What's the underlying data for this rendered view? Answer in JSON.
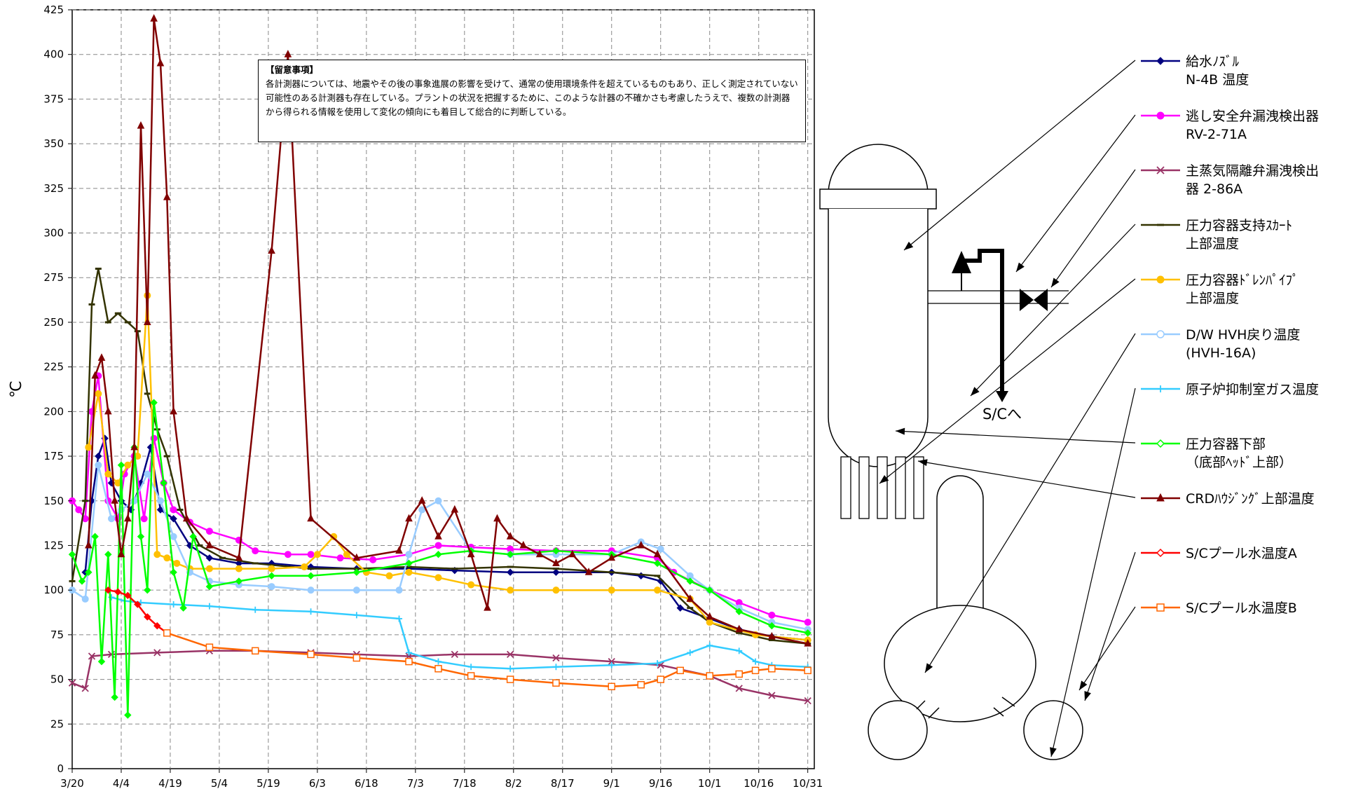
{
  "chart_data": {
    "type": "line",
    "ylabel": "℃",
    "ylim": [
      0,
      425
    ],
    "yticks": [
      0,
      25,
      50,
      75,
      100,
      125,
      150,
      175,
      200,
      225,
      250,
      275,
      300,
      325,
      350,
      375,
      400,
      425
    ],
    "xlim": [
      "3/20",
      "11/2"
    ],
    "xticks": [
      "3/20",
      "4/4",
      "4/19",
      "5/4",
      "5/19",
      "6/3",
      "6/18",
      "7/3",
      "7/18",
      "8/2",
      "8/17",
      "9/1",
      "9/16",
      "10/1",
      "10/16",
      "10/31"
    ],
    "grid": true,
    "legend_position": "right",
    "series": [
      {
        "name": "給水ﾉｽﾞﾙ N-4B 温度",
        "color": "#000080",
        "marker": "diamond",
        "x": [
          "3/24",
          "3/26",
          "3/28",
          "3/30",
          "4/1",
          "4/4",
          "4/7",
          "4/10",
          "4/13",
          "4/16",
          "4/20",
          "4/25",
          "5/1",
          "5/10",
          "5/20",
          "6/1",
          "6/15",
          "7/1",
          "7/15",
          "8/1",
          "8/15",
          "9/1",
          "9/10",
          "9/16",
          "9/22",
          "10/1",
          "10/10",
          "10/20",
          "10/31"
        ],
        "y": [
          110,
          150,
          175,
          185,
          160,
          150,
          145,
          160,
          180,
          145,
          140,
          125,
          118,
          115,
          115,
          113,
          112,
          112,
          111,
          110,
          110,
          110,
          108,
          105,
          90,
          84,
          78,
          74,
          72
        ]
      },
      {
        "name": "逃し安全弁漏洩検出器 RV-2-71A",
        "color": "#ff00ff",
        "marker": "circle",
        "x": [
          "3/20",
          "3/22",
          "3/24",
          "3/26",
          "3/28",
          "3/31",
          "4/3",
          "4/5",
          "4/8",
          "4/11",
          "4/14",
          "4/17",
          "4/20",
          "4/25",
          "5/1",
          "5/10",
          "5/15",
          "5/25",
          "6/1",
          "6/10",
          "6/20",
          "7/1",
          "7/10",
          "7/20",
          "8/1",
          "8/15",
          "9/1",
          "9/15",
          "9/20",
          "10/1",
          "10/10",
          "10/20",
          "10/31"
        ],
        "y": [
          150,
          145,
          140,
          200,
          220,
          150,
          140,
          165,
          175,
          140,
          185,
          160,
          145,
          138,
          133,
          128,
          122,
          120,
          120,
          118,
          117,
          120,
          125,
          124,
          123,
          122,
          122,
          118,
          110,
          100,
          93,
          86,
          82
        ]
      },
      {
        "name": "主蒸気隔離弁漏洩検出器 2-86A",
        "color": "#993366",
        "marker": "x",
        "x": [
          "3/20",
          "3/24",
          "3/26",
          "4/1",
          "4/15",
          "5/1",
          "5/15",
          "6/1",
          "6/15",
          "7/1",
          "7/15",
          "8/1",
          "8/15",
          "9/1",
          "9/16",
          "10/1",
          "10/10",
          "10/20",
          "10/31"
        ],
        "y": [
          48,
          45,
          63,
          64,
          65,
          66,
          66,
          65,
          64,
          63,
          64,
          64,
          62,
          60,
          58,
          52,
          45,
          41,
          38
        ]
      },
      {
        "name": "圧力容器支持ｽｶｰﾄ上部温度",
        "color": "#333300",
        "marker": "dash",
        "x": [
          "3/20",
          "3/24",
          "3/26",
          "3/28",
          "3/31",
          "4/3",
          "4/6",
          "4/9",
          "4/12",
          "4/15",
          "4/18",
          "4/22",
          "4/28",
          "5/5",
          "5/15",
          "6/1",
          "6/15",
          "7/1",
          "7/15",
          "8/1",
          "8/15",
          "9/1",
          "9/15",
          "9/25",
          "10/1",
          "10/10",
          "10/20",
          "10/31"
        ],
        "y": [
          105,
          150,
          260,
          280,
          250,
          255,
          250,
          245,
          210,
          190,
          175,
          145,
          125,
          118,
          115,
          112,
          112,
          113,
          112,
          113,
          112,
          110,
          108,
          90,
          82,
          76,
          72,
          70
        ]
      },
      {
        "name": "圧力容器ﾄﾞﾚﾝﾊﾟｲﾌﾟ上部温度",
        "color": "#ffc000",
        "marker": "circle",
        "x": [
          "3/25",
          "3/28",
          "3/31",
          "4/3",
          "4/6",
          "4/9",
          "4/12",
          "4/15",
          "4/18",
          "4/21",
          "4/25",
          "5/1",
          "5/10",
          "5/20",
          "5/30",
          "6/3",
          "6/8",
          "6/12",
          "6/18",
          "6/25",
          "7/1",
          "7/10",
          "7/20",
          "8/1",
          "8/15",
          "9/1",
          "9/15",
          "9/25",
          "10/1",
          "10/15",
          "10/31"
        ],
        "y": [
          180,
          210,
          165,
          160,
          170,
          175,
          265,
          120,
          118,
          115,
          112,
          112,
          112,
          112,
          113,
          120,
          130,
          120,
          110,
          108,
          110,
          107,
          103,
          100,
          100,
          100,
          100,
          95,
          82,
          75,
          72
        ]
      },
      {
        "name": "D/W HVH戻り温度 (HVH-16A)",
        "color": "#99ccff",
        "marker": "circle",
        "x": [
          "3/20",
          "3/24",
          "3/28",
          "4/1",
          "4/4",
          "4/8",
          "4/12",
          "4/16",
          "4/20",
          "4/25",
          "5/1",
          "5/10",
          "5/20",
          "6/1",
          "6/15",
          "6/28",
          "7/1",
          "7/5",
          "7/10",
          "7/20",
          "8/1",
          "8/15",
          "9/1",
          "9/10",
          "9/16",
          "9/25",
          "10/1",
          "10/10",
          "10/20",
          "10/31"
        ],
        "y": [
          100,
          95,
          170,
          140,
          145,
          150,
          165,
          150,
          130,
          110,
          105,
          103,
          102,
          100,
          100,
          100,
          120,
          145,
          150,
          122,
          120,
          120,
          120,
          127,
          123,
          108,
          100,
          90,
          82,
          78
        ]
      },
      {
        "name": "原子炉抑制室ガス温度",
        "color": "#33ccff",
        "marker": "plus",
        "x": [
          "4/1",
          "4/5",
          "4/10",
          "4/20",
          "5/1",
          "5/15",
          "6/1",
          "6/15",
          "6/28",
          "7/1",
          "7/10",
          "7/20",
          "8/1",
          "8/15",
          "9/1",
          "9/15",
          "9/25",
          "10/1",
          "10/10",
          "10/15",
          "10/20",
          "10/31"
        ],
        "y": [
          96,
          94,
          93,
          92,
          91,
          89,
          88,
          86,
          84,
          65,
          60,
          57,
          56,
          57,
          58,
          59,
          65,
          69,
          66,
          60,
          58,
          57
        ]
      },
      {
        "name": "圧力容器下部（底部ﾍｯﾄﾞ上部）",
        "color": "#00ff00",
        "marker": "diamond",
        "x": [
          "3/20",
          "3/23",
          "3/25",
          "3/27",
          "3/29",
          "3/31",
          "4/2",
          "4/4",
          "4/6",
          "4/8",
          "4/10",
          "4/12",
          "4/14",
          "4/17",
          "4/20",
          "4/23",
          "4/26",
          "5/1",
          "5/10",
          "5/20",
          "6/1",
          "6/15",
          "7/1",
          "7/10",
          "7/20",
          "8/1",
          "8/15",
          "9/1",
          "9/15",
          "9/25",
          "10/1",
          "10/10",
          "10/20",
          "10/31"
        ],
        "y": [
          120,
          105,
          110,
          130,
          60,
          120,
          40,
          170,
          30,
          180,
          130,
          100,
          205,
          160,
          110,
          90,
          130,
          102,
          105,
          108,
          108,
          110,
          115,
          120,
          122,
          120,
          122,
          120,
          115,
          105,
          100,
          88,
          80,
          76
        ]
      },
      {
        "name": "CRDﾊｳｼﾞﾝｸﾞ上部温度",
        "color": "#800000",
        "marker": "triangle",
        "x": [
          "3/25",
          "3/27",
          "3/29",
          "3/31",
          "4/2",
          "4/4",
          "4/6",
          "4/8",
          "4/10",
          "4/12",
          "4/14",
          "4/16",
          "4/18",
          "4/20",
          "4/24",
          "5/1",
          "5/10",
          "5/20",
          "5/25",
          "6/1",
          "6/15",
          "6/28",
          "7/1",
          "7/5",
          "7/10",
          "7/15",
          "7/20",
          "7/25",
          "7/28",
          "8/1",
          "8/5",
          "8/10",
          "8/15",
          "8/20",
          "8/25",
          "9/1",
          "9/10",
          "9/15",
          "9/25",
          "10/1",
          "10/10",
          "10/20",
          "10/31"
        ],
        "y": [
          125,
          220,
          230,
          200,
          150,
          120,
          140,
          180,
          360,
          250,
          420,
          395,
          320,
          200,
          140,
          125,
          118,
          290,
          400,
          140,
          118,
          122,
          140,
          150,
          130,
          145,
          120,
          90,
          140,
          130,
          125,
          120,
          115,
          120,
          110,
          118,
          125,
          120,
          95,
          85,
          78,
          74,
          70
        ]
      },
      {
        "name": "S/Cプール水温度A",
        "color": "#ff0000",
        "marker": "diamond",
        "x": [
          "3/31",
          "4/3",
          "4/6",
          "4/9",
          "4/12",
          "4/15",
          "4/18"
        ],
        "y": [
          100,
          99,
          97,
          92,
          85,
          80,
          76
        ]
      },
      {
        "name": "S/Cプール水温度B",
        "color": "#ff6600",
        "marker": "square",
        "x": [
          "4/18",
          "5/1",
          "5/15",
          "6/1",
          "6/15",
          "7/1",
          "7/10",
          "7/20",
          "8/1",
          "8/15",
          "9/1",
          "9/10",
          "9/16",
          "9/22",
          "10/1",
          "10/10",
          "10/15",
          "10/20",
          "10/31"
        ],
        "y": [
          76,
          68,
          66,
          64,
          62,
          60,
          56,
          52,
          50,
          48,
          46,
          47,
          50,
          55,
          52,
          53,
          55,
          56,
          55
        ]
      }
    ]
  },
  "note": {
    "title": "【留意事項】",
    "body": "各計測器については、地震やその後の事象進展の影響を受けて、通常の使用環境条件を超えているものもあり、正しく測定されていない可能性のある計測器も存在している。プラントの状況を把握するために、このような計器の不確かさも考慮したうえで、複数の計測器から得られる情報を使用して変化の傾向にも着目して総合的に判断している。"
  },
  "legend": [
    {
      "line1": "給水ﾉｽﾞﾙ",
      "line2": "N-4B 温度",
      "color": "#000080",
      "marker": "diamond"
    },
    {
      "line1": "逃し安全弁漏洩検出器",
      "line2": "RV-2-71A",
      "color": "#ff00ff",
      "marker": "circle"
    },
    {
      "line1": "主蒸気隔離弁漏洩検出",
      "line2": "器 2-86A",
      "color": "#993366",
      "marker": "x"
    },
    {
      "line1": "圧力容器支持ｽｶｰﾄ",
      "line2": "上部温度",
      "color": "#333300",
      "marker": "dash"
    },
    {
      "line1": "圧力容器ﾄﾞﾚﾝﾊﾟｲﾌﾟ",
      "line2": "上部温度",
      "color": "#ffc000",
      "marker": "circle-filled"
    },
    {
      "line1": "D/W HVH戻り温度",
      "line2": "(HVH-16A)",
      "color": "#99ccff",
      "marker": "circle-open"
    },
    {
      "line1": "原子炉抑制室ガス温度",
      "line2": "",
      "color": "#33ccff",
      "marker": "plus"
    },
    {
      "line1": "圧力容器下部",
      "line2": "（底部ﾍｯﾄﾞ上部）",
      "color": "#00ff00",
      "marker": "diamond-open"
    },
    {
      "line1": "CRDﾊｳｼﾞﾝｸﾞ上部温度",
      "line2": "",
      "color": "#800000",
      "marker": "triangle"
    },
    {
      "line1": "S/Cプール水温度A",
      "line2": "",
      "color": "#ff0000",
      "marker": "diamond-open"
    },
    {
      "line1": "S/Cプール水温度B",
      "line2": "",
      "color": "#ff6600",
      "marker": "square-open"
    }
  ],
  "diagram": {
    "sc_label": "S/Cへ"
  }
}
